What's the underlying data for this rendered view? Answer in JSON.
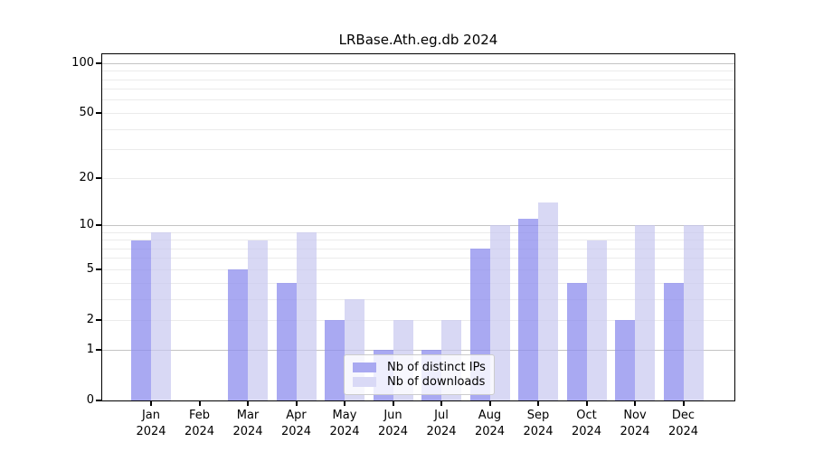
{
  "title": "LRBase.Ath.eg.db 2024",
  "chart_data": {
    "type": "bar",
    "title": "LRBase.Ath.eg.db 2024",
    "x_months": [
      "Jan",
      "Feb",
      "Mar",
      "Apr",
      "May",
      "Jun",
      "Jul",
      "Aug",
      "Sep",
      "Oct",
      "Nov",
      "Dec"
    ],
    "x_year": "2024",
    "series": [
      {
        "name": "Nb of distinct IPs",
        "color": "#8c8cee",
        "alpha": 0.75,
        "legend_color": "#a9a9f1",
        "values": [
          8,
          0,
          5,
          4,
          2,
          1,
          1,
          7,
          11,
          4,
          2,
          4
        ]
      },
      {
        "name": "Nb of downloads",
        "color": "#c8c8f0",
        "alpha": 0.7,
        "legend_color": "#d9d9f6",
        "values": [
          9,
          0,
          8,
          9,
          3,
          2,
          2,
          10,
          14,
          8,
          10,
          10
        ]
      }
    ],
    "y_scale": "pseudo-log: position = log10(1 + y)",
    "y_ticks": [
      0,
      1,
      2,
      5,
      10,
      20,
      50,
      100
    ],
    "y_gridlines_major": [
      1,
      10,
      100
    ],
    "y_gridlines_minor": [
      2,
      3,
      4,
      5,
      6,
      7,
      8,
      9,
      20,
      30,
      40,
      50,
      60,
      70,
      80,
      90
    ],
    "ylim": [
      0,
      112
    ],
    "xlabel": "",
    "ylabel": "",
    "grid": true,
    "legend_position": "lower center inside plot"
  },
  "colors": {
    "background": "#ffffff",
    "spine": "#000000",
    "grid_major": "#c4c4c4",
    "grid_minor": "#ebebeb",
    "text": "#000000",
    "legend_border": "#cccccc"
  }
}
